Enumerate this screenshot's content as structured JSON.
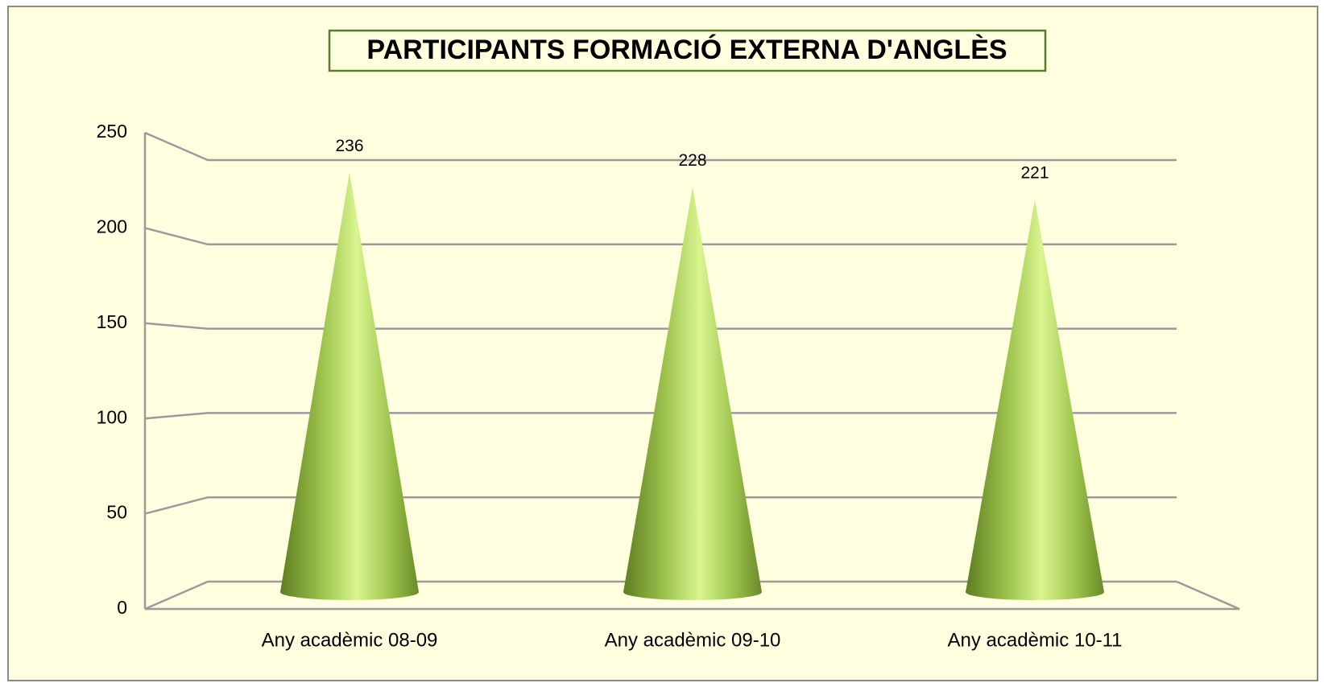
{
  "chart_data": {
    "type": "cone",
    "title": "PARTICIPANTS FORMACIÓ EXTERNA D'ANGLÈS",
    "categories": [
      "Any acadèmic 08-09",
      "Any acadèmic 09-10",
      "Any acadèmic 10-11"
    ],
    "values": [
      236,
      228,
      221
    ],
    "color": "#9bc24a",
    "ylim": [
      0,
      250
    ],
    "yticks": [
      0,
      50,
      100,
      150,
      200,
      250
    ],
    "grid": true
  }
}
